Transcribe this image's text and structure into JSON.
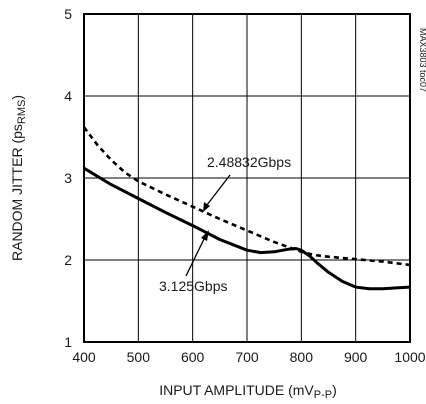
{
  "chart_data": {
    "type": "line",
    "title": "",
    "xlabel": "INPUT AMPLITUDE (mV",
    "xlabel_sub": "P-P",
    "xlabel_close": ")",
    "ylabel": "RANDOM JITTER (ps",
    "ylabel_sub": "RMS",
    "ylabel_close": ")",
    "side_label": "MAX3803 toc07",
    "xlim": [
      400,
      1000
    ],
    "ylim": [
      1,
      5
    ],
    "x_ticks": [
      "400",
      "500",
      "600",
      "700",
      "800",
      "900",
      "1000"
    ],
    "y_ticks": [
      "1",
      "2",
      "3",
      "4",
      "5"
    ],
    "grid": true,
    "series": [
      {
        "name": "2.48832Gbps",
        "style": "dashed",
        "x": [
          400,
          425,
          450,
          475,
          500,
          550,
          600,
          650,
          700,
          750,
          775,
          800,
          825,
          850,
          900,
          950,
          1000
        ],
        "y": [
          3.62,
          3.4,
          3.22,
          3.07,
          2.96,
          2.8,
          2.65,
          2.5,
          2.36,
          2.22,
          2.16,
          2.1,
          2.06,
          2.04,
          2.01,
          1.98,
          1.94
        ]
      },
      {
        "name": "3.125Gbps",
        "style": "solid",
        "x": [
          400,
          450,
          500,
          550,
          600,
          650,
          700,
          725,
          750,
          775,
          790,
          800,
          815,
          830,
          850,
          875,
          900,
          925,
          950,
          975,
          1000
        ],
        "y": [
          3.12,
          2.92,
          2.75,
          2.58,
          2.42,
          2.25,
          2.12,
          2.09,
          2.1,
          2.13,
          2.14,
          2.12,
          2.05,
          1.96,
          1.85,
          1.74,
          1.67,
          1.65,
          1.65,
          1.66,
          1.67
        ]
      }
    ],
    "annotations": [
      {
        "text": "2.48832Gbps",
        "series": "2.48832Gbps"
      },
      {
        "text": "3.125Gbps",
        "series": "3.125Gbps"
      }
    ]
  }
}
